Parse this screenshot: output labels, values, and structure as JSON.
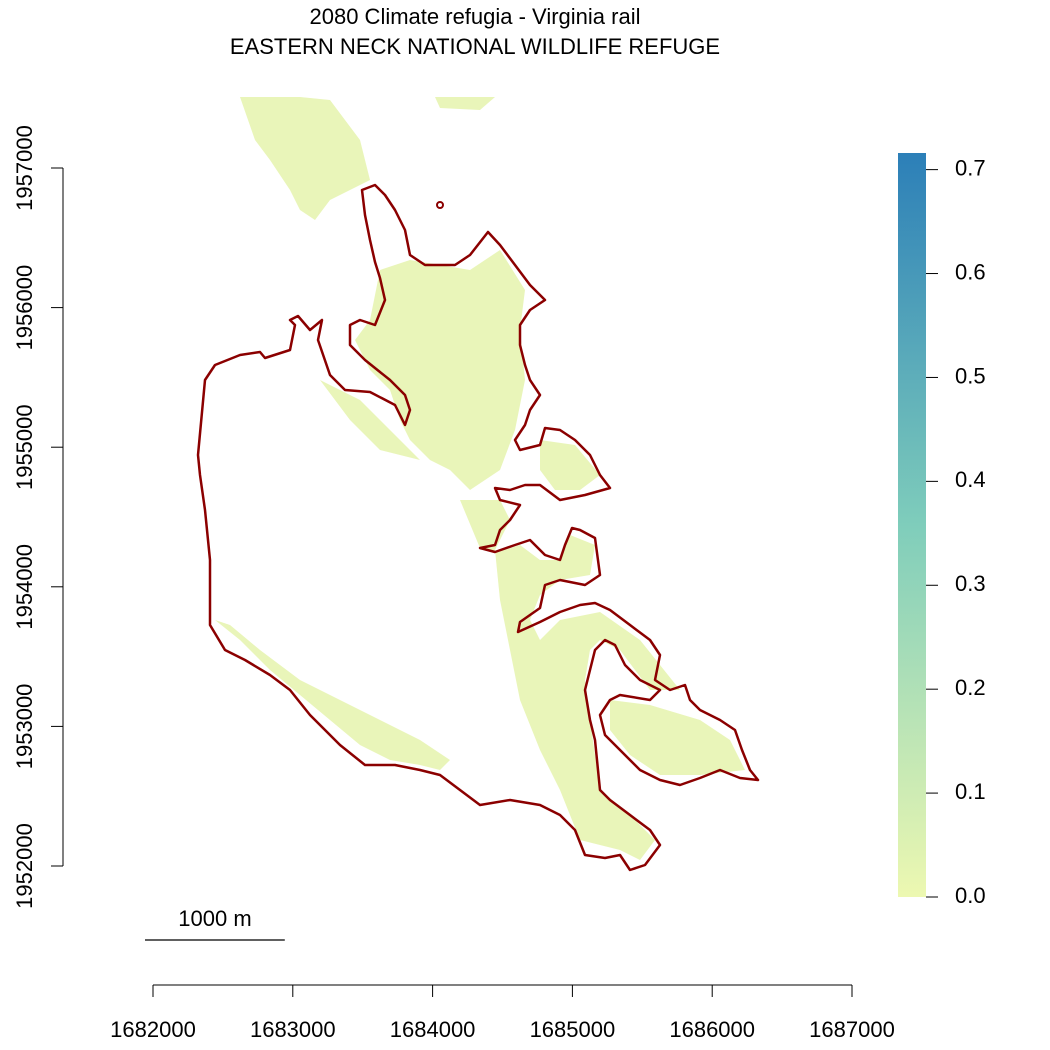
{
  "chart_data": {
    "type": "raster-map",
    "title": "2080 Climate refugia - Virginia rail",
    "subtitle": "EASTERN NECK NATIONAL WILDLIFE REFUGE",
    "xlim": [
      1682000,
      1687000
    ],
    "xticks": [
      1682000,
      1683000,
      1684000,
      1685000,
      1686000,
      1687000
    ],
    "ylim": [
      1952000,
      1957000
    ],
    "yticks": [
      1952000,
      1953000,
      1954000,
      1955000,
      1956000,
      1957000
    ],
    "colorlim": [
      0,
      0.716
    ],
    "colorticks": [
      {
        "value": 0,
        "label": "0.0"
      },
      0.1,
      0.2,
      0.3,
      0.4,
      0.5,
      0.6,
      0.7
    ],
    "colors": [
      "#edf8b1",
      "#7fcdbb",
      "#2c7fb8"
    ],
    "boundary_color": "#8b0000",
    "scale_bar": {
      "label": "1000 m",
      "length": 1000
    }
  }
}
